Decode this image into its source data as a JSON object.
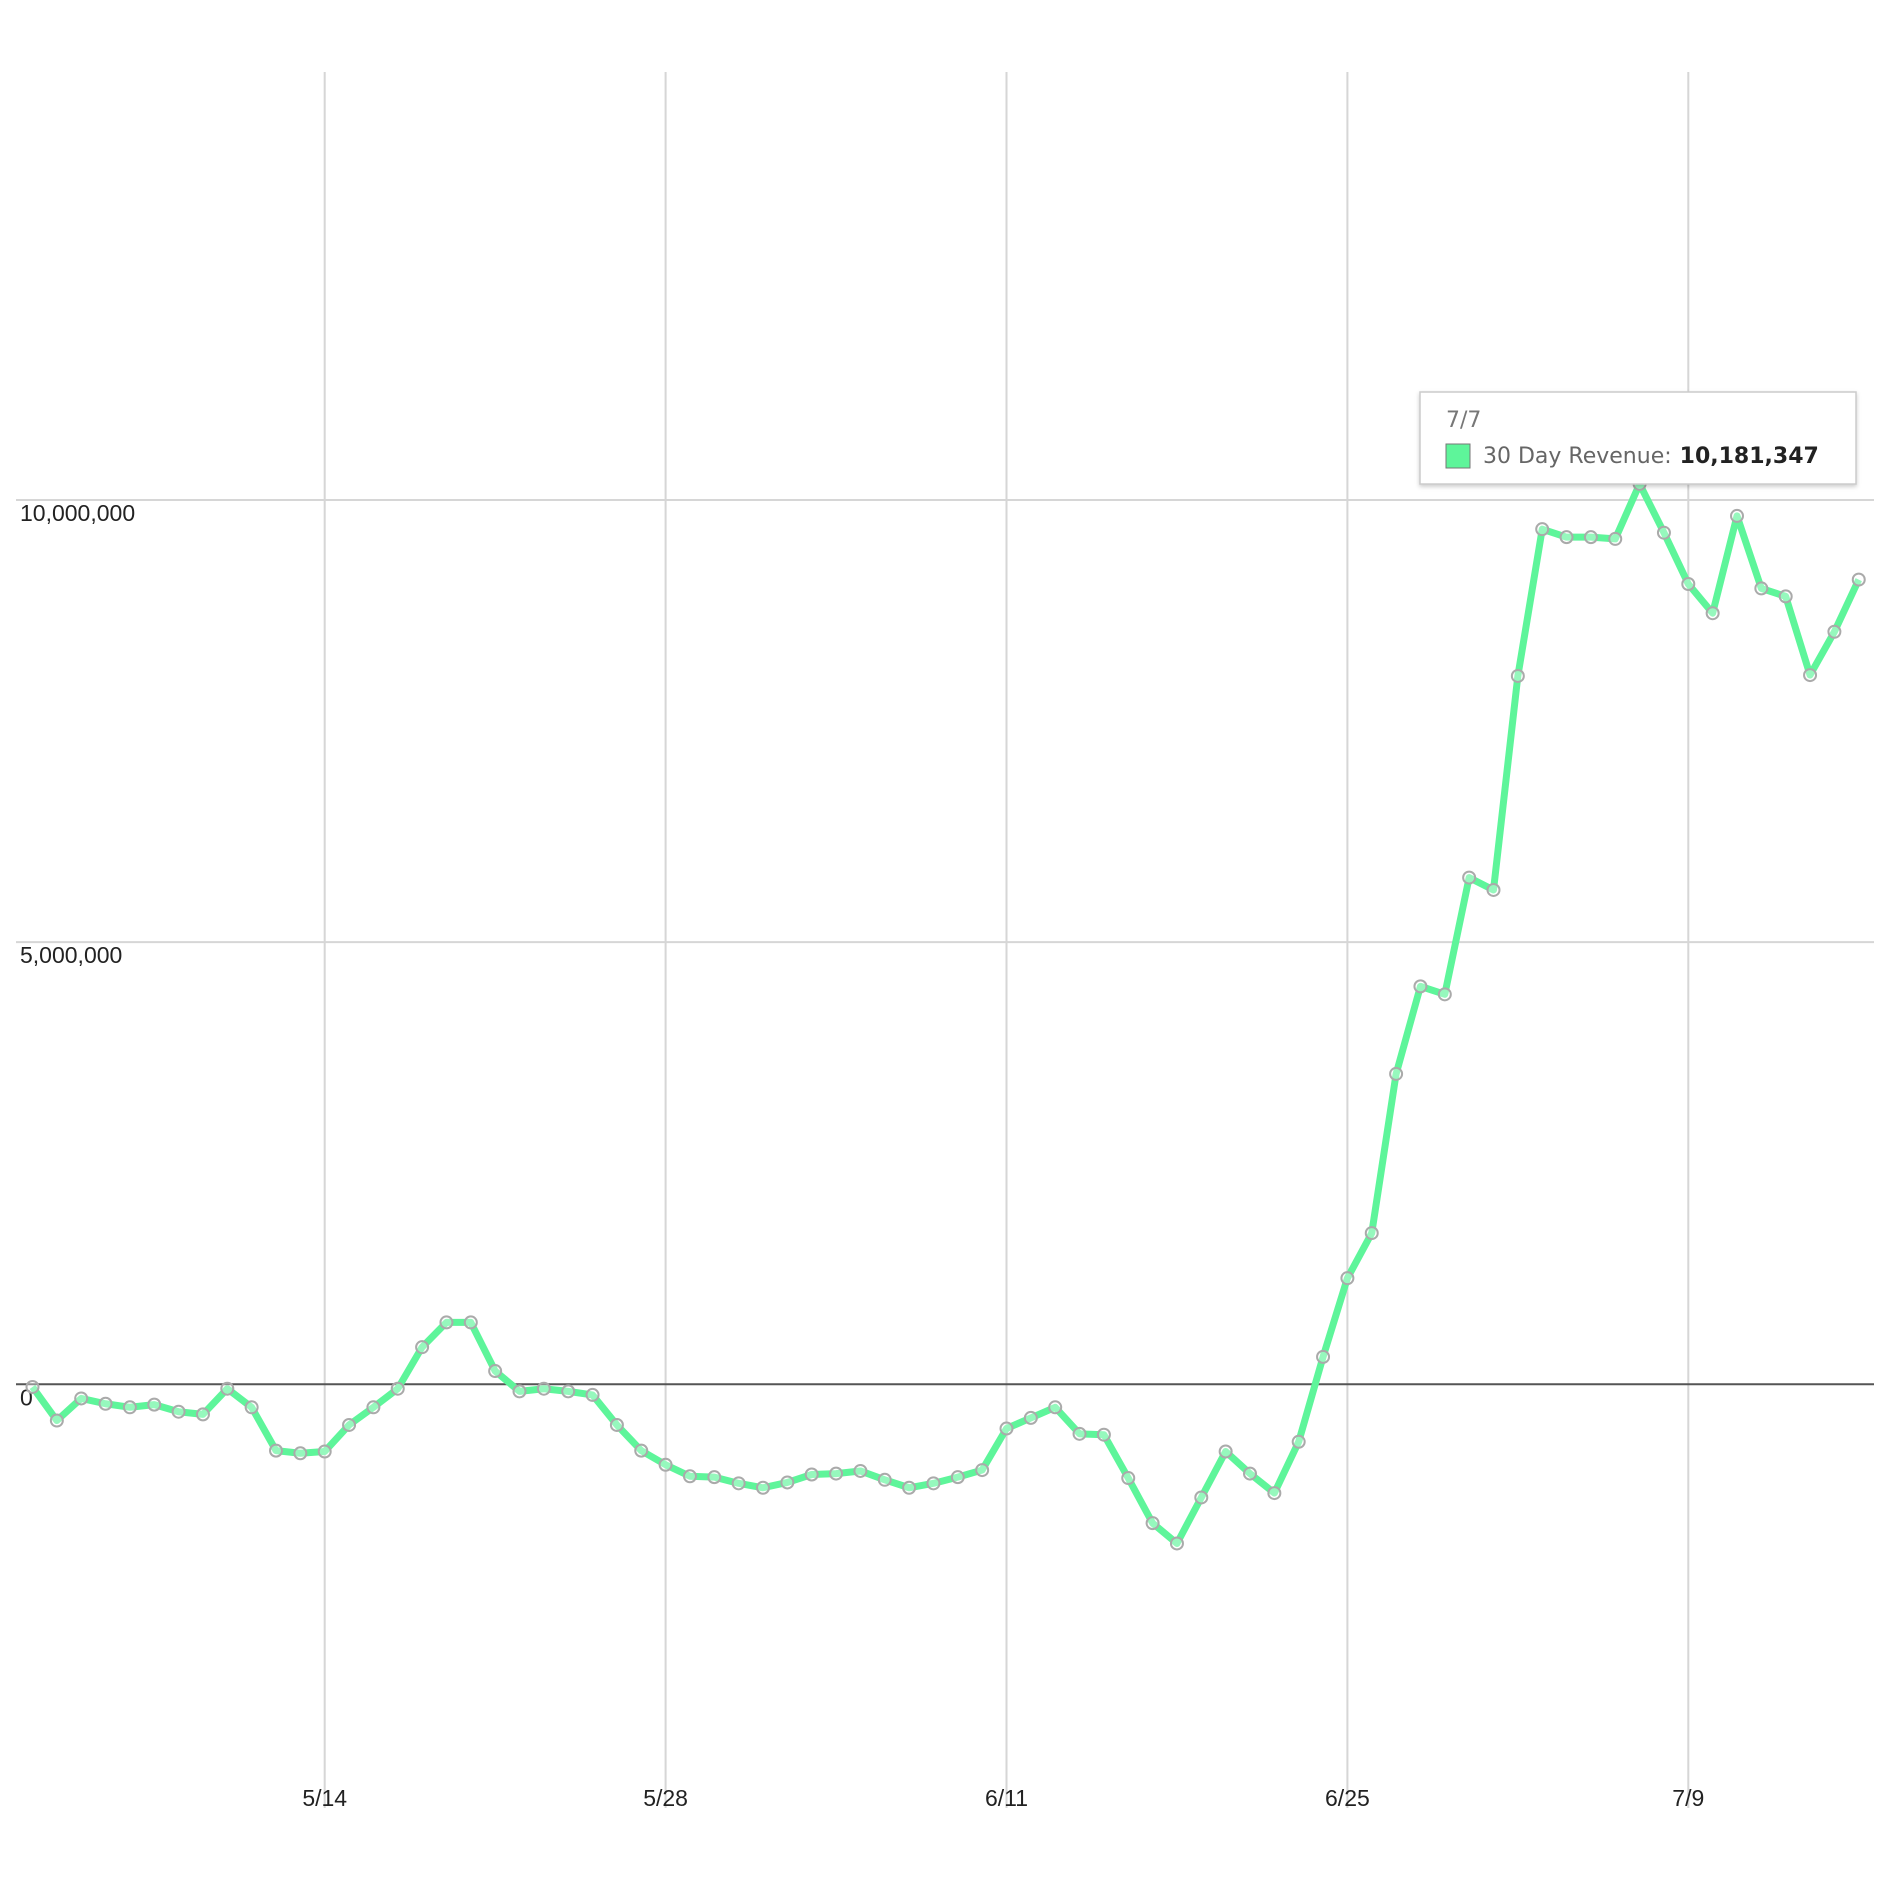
{
  "chart_data": {
    "type": "line",
    "categories": [
      null,
      null,
      null,
      null,
      null,
      null,
      null,
      null,
      null,
      null,
      null,
      null,
      "5/14",
      null,
      null,
      null,
      null,
      null,
      null,
      null,
      null,
      null,
      null,
      null,
      null,
      null,
      "5/28",
      null,
      null,
      null,
      null,
      null,
      null,
      null,
      null,
      null,
      null,
      null,
      null,
      null,
      "6/11",
      null,
      null,
      null,
      null,
      null,
      null,
      null,
      null,
      null,
      null,
      null,
      null,
      null,
      "6/25",
      null,
      null,
      null,
      null,
      null,
      null,
      null,
      null,
      null,
      null,
      null,
      null,
      null,
      "7/9",
      null,
      null,
      null,
      null,
      null,
      null,
      null
    ],
    "series": [
      {
        "name": "30 Day Revenue",
        "color": "#5ef59a",
        "values": [
          -30000,
          -410000,
          -160000,
          -220000,
          -260000,
          -230000,
          -310000,
          -340000,
          -50000,
          -260000,
          -750000,
          -780000,
          -760000,
          -460000,
          -260000,
          -50000,
          420000,
          700000,
          700000,
          150000,
          -80000,
          -50000,
          -80000,
          -120000,
          -460000,
          -750000,
          -910000,
          -1040000,
          -1050000,
          -1120000,
          -1170000,
          -1110000,
          -1020000,
          -1010000,
          -980000,
          -1080000,
          -1170000,
          -1120000,
          -1050000,
          -970000,
          -500000,
          -380000,
          -260000,
          -560000,
          -570000,
          -1060000,
          -1570000,
          -1800000,
          -1280000,
          -760000,
          -1010000,
          -1230000,
          -650000,
          310000,
          1200000,
          1710000,
          3510000,
          4500000,
          4410000,
          5730000,
          5590000,
          8010000,
          9670000,
          9580000,
          9580000,
          9560000,
          10181347,
          9630000,
          9050000,
          8720000,
          9820000,
          9000000,
          8910000,
          8020000,
          8510000,
          9100000
        ]
      }
    ],
    "ylim": [
      -4520000,
      14840000
    ],
    "yticks": [
      {
        "value": 0,
        "label": "0"
      },
      {
        "value": 5000000,
        "label": "5,000,000"
      },
      {
        "value": 10000000,
        "label": "10,000,000"
      }
    ],
    "grid": true,
    "tooltip": {
      "title": "7/7",
      "label": "30 Day Revenue:",
      "value": {
        "value": 10181347,
        "label": "10,181,347"
      }
    }
  }
}
